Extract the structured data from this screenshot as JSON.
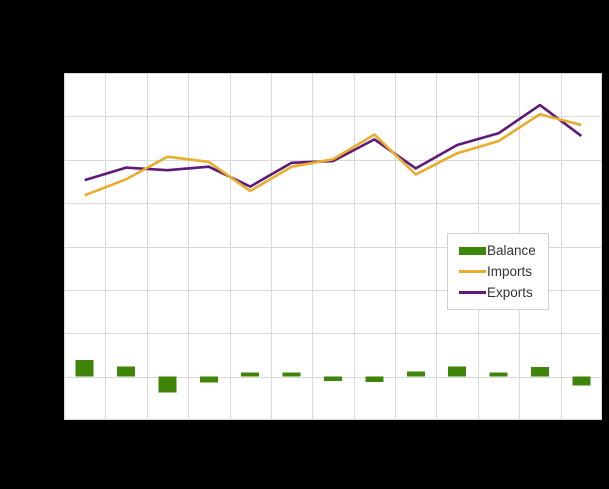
{
  "figure": {
    "background_color": "#000000",
    "plot_background_color": "#ffffff",
    "gridline_color": "#d9d9d9",
    "legend_border_color": "#d0d0d0",
    "legend_text_color": "#333333"
  },
  "legend": {
    "items": [
      {
        "label": "Balance",
        "swatch": "bar",
        "color": "#3f850a"
      },
      {
        "label": "Imports",
        "swatch": "line",
        "color": "#e9ac2c"
      },
      {
        "label": "Exports",
        "swatch": "line",
        "color": "#5e1a78"
      }
    ]
  },
  "chart_data": {
    "type": "bar+line",
    "title": "",
    "xlabel": "",
    "ylabel": "",
    "x": [
      1,
      2,
      3,
      4,
      5,
      6,
      7,
      8,
      9,
      10,
      11,
      12,
      13
    ],
    "x_tick_labels_visible": false,
    "y_tick_labels_visible": false,
    "ylim": [
      -10,
      70
    ],
    "y_gridline_step": 10,
    "grid": true,
    "legend_position": "inside-right",
    "series": [
      {
        "name": "Balance",
        "kind": "bar",
        "color": "#3f850a",
        "values": [
          3.8,
          2.3,
          -3.7,
          -1.4,
          1.0,
          1.0,
          -1.0,
          -1.3,
          1.2,
          2.3,
          1.0,
          2.2,
          -2.1
        ]
      },
      {
        "name": "Exports",
        "kind": "line",
        "color": "#5e1a78",
        "values": [
          45.3,
          48.2,
          47.6,
          48.4,
          43.8,
          49.3,
          49.7,
          54.7,
          48.0,
          53.4,
          56.1,
          62.6,
          55.5
        ]
      },
      {
        "name": "Imports",
        "kind": "line",
        "color": "#e9ac2c",
        "values": [
          41.8,
          45.5,
          50.7,
          49.5,
          42.8,
          48.4,
          50.1,
          55.8,
          46.6,
          51.5,
          54.3,
          60.5,
          58.0
        ]
      }
    ]
  }
}
